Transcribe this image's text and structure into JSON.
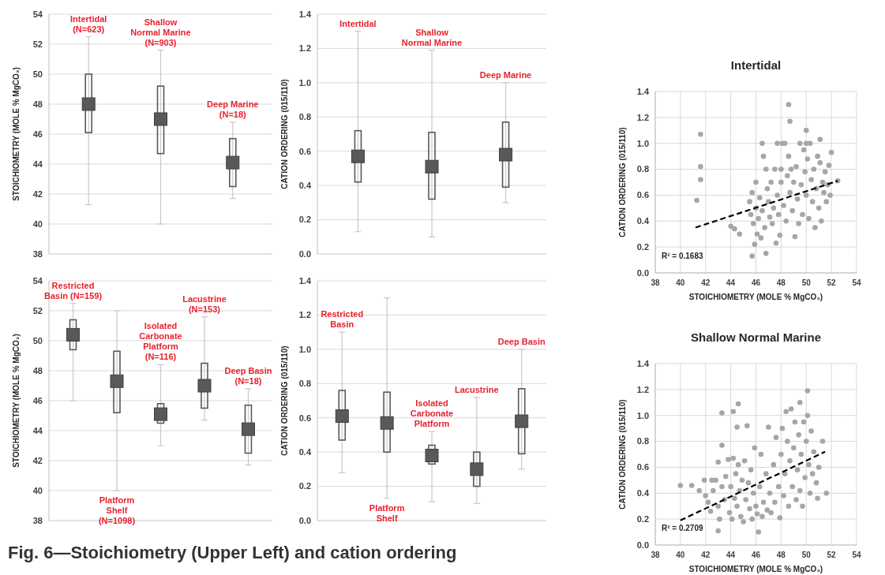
{
  "chart_data": [
    {
      "type": "box",
      "ylabel": "STOICHIOMETRY (MOLE % MgCO₃)",
      "ylim": [
        38,
        54
      ],
      "yticks": [
        38,
        40,
        42,
        44,
        46,
        48,
        50,
        52,
        54
      ],
      "grid": "y",
      "tick_labels": "y",
      "categories": [
        "Intertidal (N=623)",
        "Shallow Normal Marine (N=903)",
        "Deep Marine (N=18)"
      ],
      "series": [
        {
          "color": "#595959",
          "boxes": [
            {
              "low": 41.3,
              "q1": 46.1,
              "median": 48.0,
              "q3": 50.0,
              "high": 52.5
            },
            {
              "low": 40.0,
              "q1": 44.7,
              "median": 47.0,
              "q3": 49.2,
              "high": 51.6
            },
            {
              "low": 41.7,
              "q1": 42.5,
              "median": 44.1,
              "q3": 45.7,
              "high": 46.8
            }
          ]
        }
      ]
    },
    {
      "type": "box",
      "ylabel": "CATION ORDERING (015/110)",
      "ylim": [
        0,
        1.4
      ],
      "yticks": [
        {
          "value": 0,
          "label": "0.0"
        },
        {
          "value": 0.2,
          "label": "0.2"
        },
        {
          "value": 0.4,
          "label": "0.4"
        },
        {
          "value": 0.6,
          "label": "0.6"
        },
        {
          "value": 0.8,
          "label": "0.8"
        },
        {
          "value": 1,
          "label": "1.0"
        },
        {
          "value": 1.2,
          "label": "1.2"
        },
        {
          "value": 1.4,
          "label": "1.4"
        }
      ],
      "grid": "y",
      "tick_labels": "y",
      "categories": [
        "Intertidal",
        "Shallow Normal Marine",
        "Deep Marine"
      ],
      "series": [
        {
          "color": "#595959",
          "boxes": [
            {
              "low": 0.13,
              "q1": 0.42,
              "median": 0.57,
              "q3": 0.72,
              "high": 1.3
            },
            {
              "low": 0.1,
              "q1": 0.32,
              "median": 0.51,
              "q3": 0.71,
              "high": 1.19
            },
            {
              "low": 0.3,
              "q1": 0.39,
              "median": 0.58,
              "q3": 0.77,
              "high": 1.0
            }
          ]
        }
      ]
    },
    {
      "type": "scatter",
      "title": "Intertidal",
      "xlabel": "STOICHIOMETRY (MOLE % MgCO₃)",
      "ylabel": "CATION ORDERING (015/110)",
      "xlim": [
        38,
        54
      ],
      "xticks": [
        38,
        40,
        42,
        44,
        46,
        48,
        50,
        52,
        54
      ],
      "ylim": [
        0,
        1.4
      ],
      "yticks": [
        {
          "value": 0,
          "label": "0.0"
        },
        {
          "value": 0.2,
          "label": "0.2"
        },
        {
          "value": 0.4,
          "label": "0.4"
        },
        {
          "value": 0.6,
          "label": "0.6"
        },
        {
          "value": 0.8,
          "label": "0.8"
        },
        {
          "value": 1,
          "label": "1.0"
        },
        {
          "value": 1.2,
          "label": "1.2"
        },
        {
          "value": 1.4,
          "label": "1.4"
        }
      ],
      "grid": true,
      "annotations": [
        "R² = 0.1683"
      ],
      "series": [
        {
          "type": "scatter",
          "marker": "circle",
          "color": "#a6a6a6",
          "x": [
            41.3,
            41.6,
            41.6,
            41.6,
            44.0,
            44.3,
            44.7,
            45.7,
            46.8,
            48.6,
            48.7,
            50.0,
            51.1,
            52.0,
            52.5,
            45.5,
            45.6,
            45.7,
            45.8,
            45.9,
            46.0,
            46.0,
            46.1,
            46.2,
            46.3,
            46.4,
            46.5,
            46.5,
            46.6,
            46.7,
            46.8,
            46.9,
            47.0,
            47.1,
            47.2,
            47.3,
            47.4,
            47.5,
            47.6,
            47.7,
            47.7,
            47.8,
            47.9,
            48.0,
            48.0,
            48.1,
            48.2,
            48.3,
            48.4,
            48.5,
            48.6,
            48.7,
            48.8,
            48.9,
            49.0,
            49.1,
            49.2,
            49.3,
            49.4,
            49.5,
            49.6,
            49.7,
            49.8,
            49.9,
            50.0,
            50.0,
            50.1,
            50.2,
            50.3,
            50.4,
            50.5,
            50.6,
            50.7,
            50.8,
            50.9,
            51.0,
            51.1,
            51.2,
            51.3,
            51.4,
            51.5,
            51.6,
            51.7,
            51.8,
            51.9
          ],
          "values": [
            0.56,
            1.07,
            0.82,
            0.72,
            0.36,
            0.34,
            0.3,
            0.13,
            0.15,
            1.3,
            1.17,
            1.1,
            1.03,
            0.93,
            0.71,
            0.55,
            0.45,
            0.62,
            0.38,
            0.22,
            0.7,
            0.5,
            0.3,
            0.42,
            0.58,
            0.27,
            1.0,
            0.48,
            0.9,
            0.35,
            0.8,
            0.65,
            0.55,
            0.43,
            0.7,
            0.38,
            0.5,
            0.8,
            0.23,
            1.0,
            0.6,
            0.45,
            0.29,
            0.8,
            0.7,
            1.0,
            0.52,
            1.0,
            0.4,
            0.75,
            0.9,
            0.62,
            0.8,
            0.48,
            0.7,
            0.28,
            0.82,
            0.57,
            0.38,
            1.0,
            0.68,
            0.45,
            0.95,
            0.78,
            1.0,
            0.6,
            0.88,
            0.42,
            1.0,
            0.72,
            0.55,
            0.8,
            0.35,
            0.65,
            0.9,
            0.5,
            0.85,
            0.4,
            0.7,
            0.62,
            0.78,
            0.55,
            0.68,
            0.83,
            0.6
          ]
        },
        {
          "type": "line",
          "color": "#000000",
          "line_style": "dashed",
          "x": [
            41.2,
            52.5
          ],
          "values": [
            0.35,
            0.71
          ]
        }
      ]
    },
    {
      "type": "box",
      "ylabel": "STOICHIOMETRY (MOLE % MgCO₃)",
      "ylim": [
        38,
        54
      ],
      "yticks": [
        38,
        40,
        42,
        44,
        46,
        48,
        50,
        52,
        54
      ],
      "grid": "y",
      "tick_labels": "y",
      "annotations": [
        "Fig. 6—Stoichiometry (Upper Left)  and cation ordering"
      ],
      "categories": [
        "Restricted Basin (N=159)",
        "Platform Shelf (N=1098)",
        "Isolated Carbonate Platform (N=116)",
        "Lacustrine (N=153)",
        "Deep Basin (N=18)"
      ],
      "series": [
        {
          "color": "#595959",
          "boxes": [
            {
              "low": 46.0,
              "q1": 49.4,
              "median": 50.4,
              "q3": 51.4,
              "high": 52.5
            },
            {
              "low": 40.0,
              "q1": 45.2,
              "median": 47.3,
              "q3": 49.3,
              "high": 52.0
            },
            {
              "low": 43.0,
              "q1": 44.5,
              "median": 45.1,
              "q3": 45.8,
              "high": 48.4
            },
            {
              "low": 44.7,
              "q1": 45.5,
              "median": 47.0,
              "q3": 48.5,
              "high": 51.6
            },
            {
              "low": 41.7,
              "q1": 42.5,
              "median": 44.1,
              "q3": 45.7,
              "high": 46.8
            }
          ]
        }
      ]
    },
    {
      "type": "box",
      "ylabel": "CATION ORDERING (015/110)",
      "ylim": [
        0,
        1.4
      ],
      "yticks": [
        {
          "value": 0,
          "label": "0.0"
        },
        {
          "value": 0.2,
          "label": "0.2"
        },
        {
          "value": 0.4,
          "label": "0.4"
        },
        {
          "value": 0.6,
          "label": "0.6"
        },
        {
          "value": 0.8,
          "label": "0.8"
        },
        {
          "value": 1,
          "label": "1.0"
        },
        {
          "value": 1.2,
          "label": "1.2"
        },
        {
          "value": 1.4,
          "label": "1.4"
        }
      ],
      "grid": "y",
      "tick_labels": "y",
      "categories": [
        "Restricted Basin",
        "Platform Shelf",
        "Isolated Carbonate Platform",
        "Lacustrine",
        "Deep Basin"
      ],
      "series": [
        {
          "color": "#595959",
          "boxes": [
            {
              "low": 0.28,
              "q1": 0.47,
              "median": 0.61,
              "q3": 0.76,
              "high": 1.1
            },
            {
              "low": 0.13,
              "q1": 0.4,
              "median": 0.57,
              "q3": 0.75,
              "high": 1.3
            },
            {
              "low": 0.11,
              "q1": 0.33,
              "median": 0.38,
              "q3": 0.44,
              "high": 0.52
            },
            {
              "low": 0.1,
              "q1": 0.2,
              "median": 0.3,
              "q3": 0.4,
              "high": 0.72
            },
            {
              "low": 0.3,
              "q1": 0.39,
              "median": 0.58,
              "q3": 0.77,
              "high": 1.0
            }
          ]
        }
      ]
    },
    {
      "type": "scatter",
      "title": "Shallow Normal Marine",
      "xlabel": "STOICHIOMETRY (MOLE % MgCO₃)",
      "ylabel": "CATION ORDERING (015/110)",
      "xlim": [
        38,
        54
      ],
      "xticks": [
        38,
        40,
        42,
        44,
        46,
        48,
        50,
        52,
        54
      ],
      "ylim": [
        0,
        1.4
      ],
      "yticks": [
        {
          "value": 0,
          "label": "0.0"
        },
        {
          "value": 0.2,
          "label": "0.2"
        },
        {
          "value": 0.4,
          "label": "0.4"
        },
        {
          "value": 0.6,
          "label": "0.6"
        },
        {
          "value": 0.8,
          "label": "0.8"
        },
        {
          "value": 1,
          "label": "1.0"
        },
        {
          "value": 1.2,
          "label": "1.2"
        },
        {
          "value": 1.4,
          "label": "1.4"
        }
      ],
      "grid": true,
      "annotations": [
        "R² = 0.2709"
      ],
      "series": [
        {
          "type": "scatter",
          "marker": "circle",
          "color": "#a6a6a6",
          "x": [
            40.0,
            40.9,
            41.5,
            43.0,
            43.3,
            43.3,
            44.2,
            44.6,
            44.5,
            46.2,
            50.1,
            49.5,
            51.6,
            51.3,
            50.9,
            41.9,
            42.0,
            42.2,
            42.4,
            42.5,
            42.6,
            42.8,
            43.0,
            43.0,
            43.1,
            43.3,
            43.5,
            43.6,
            43.8,
            43.9,
            44.0,
            44.1,
            44.2,
            44.3,
            44.4,
            44.5,
            44.6,
            44.7,
            44.8,
            44.9,
            45.0,
            45.1,
            45.2,
            45.3,
            45.4,
            45.5,
            45.6,
            45.7,
            45.8,
            45.9,
            46.0,
            46.1,
            46.3,
            46.4,
            46.5,
            46.6,
            46.8,
            46.9,
            47.0,
            47.1,
            47.2,
            47.4,
            47.5,
            47.6,
            47.8,
            47.9,
            48.0,
            48.1,
            48.2,
            48.3,
            48.4,
            48.5,
            48.6,
            48.7,
            48.8,
            48.9,
            49.0,
            49.1,
            49.2,
            49.3,
            49.4,
            49.5,
            49.6,
            49.7,
            49.8,
            49.9,
            50.0,
            50.1,
            50.2,
            50.3,
            50.4,
            50.5,
            50.6,
            50.8,
            51.0
          ],
          "values": [
            0.46,
            0.46,
            0.42,
            0.11,
            1.02,
            0.77,
            1.03,
            1.09,
            0.91,
            0.1,
            1.19,
            1.1,
            0.4,
            0.8,
            0.36,
            0.5,
            0.38,
            0.33,
            0.26,
            0.5,
            0.42,
            0.5,
            0.64,
            0.3,
            0.2,
            0.45,
            0.35,
            0.53,
            0.66,
            0.25,
            0.45,
            0.2,
            0.67,
            0.36,
            0.55,
            0.3,
            0.62,
            0.42,
            0.22,
            0.5,
            0.18,
            0.65,
            0.35,
            0.92,
            0.48,
            0.28,
            0.58,
            0.2,
            0.4,
            0.75,
            0.3,
            0.24,
            0.45,
            0.7,
            0.22,
            0.33,
            0.55,
            0.27,
            0.91,
            0.4,
            0.25,
            0.62,
            0.33,
            0.83,
            0.45,
            0.21,
            0.7,
            0.9,
            0.38,
            0.55,
            1.03,
            0.8,
            0.3,
            0.65,
            1.05,
            0.45,
            0.75,
            0.95,
            0.35,
            0.58,
            0.85,
            0.42,
            0.7,
            0.3,
            0.95,
            0.52,
            0.8,
            1.0,
            0.62,
            0.4,
            0.88,
            0.55,
            0.72,
            0.48,
            0.6
          ]
        },
        {
          "type": "line",
          "color": "#000000",
          "line_style": "dashed",
          "x": [
            40.0,
            51.5
          ],
          "values": [
            0.19,
            0.72
          ]
        }
      ]
    }
  ]
}
